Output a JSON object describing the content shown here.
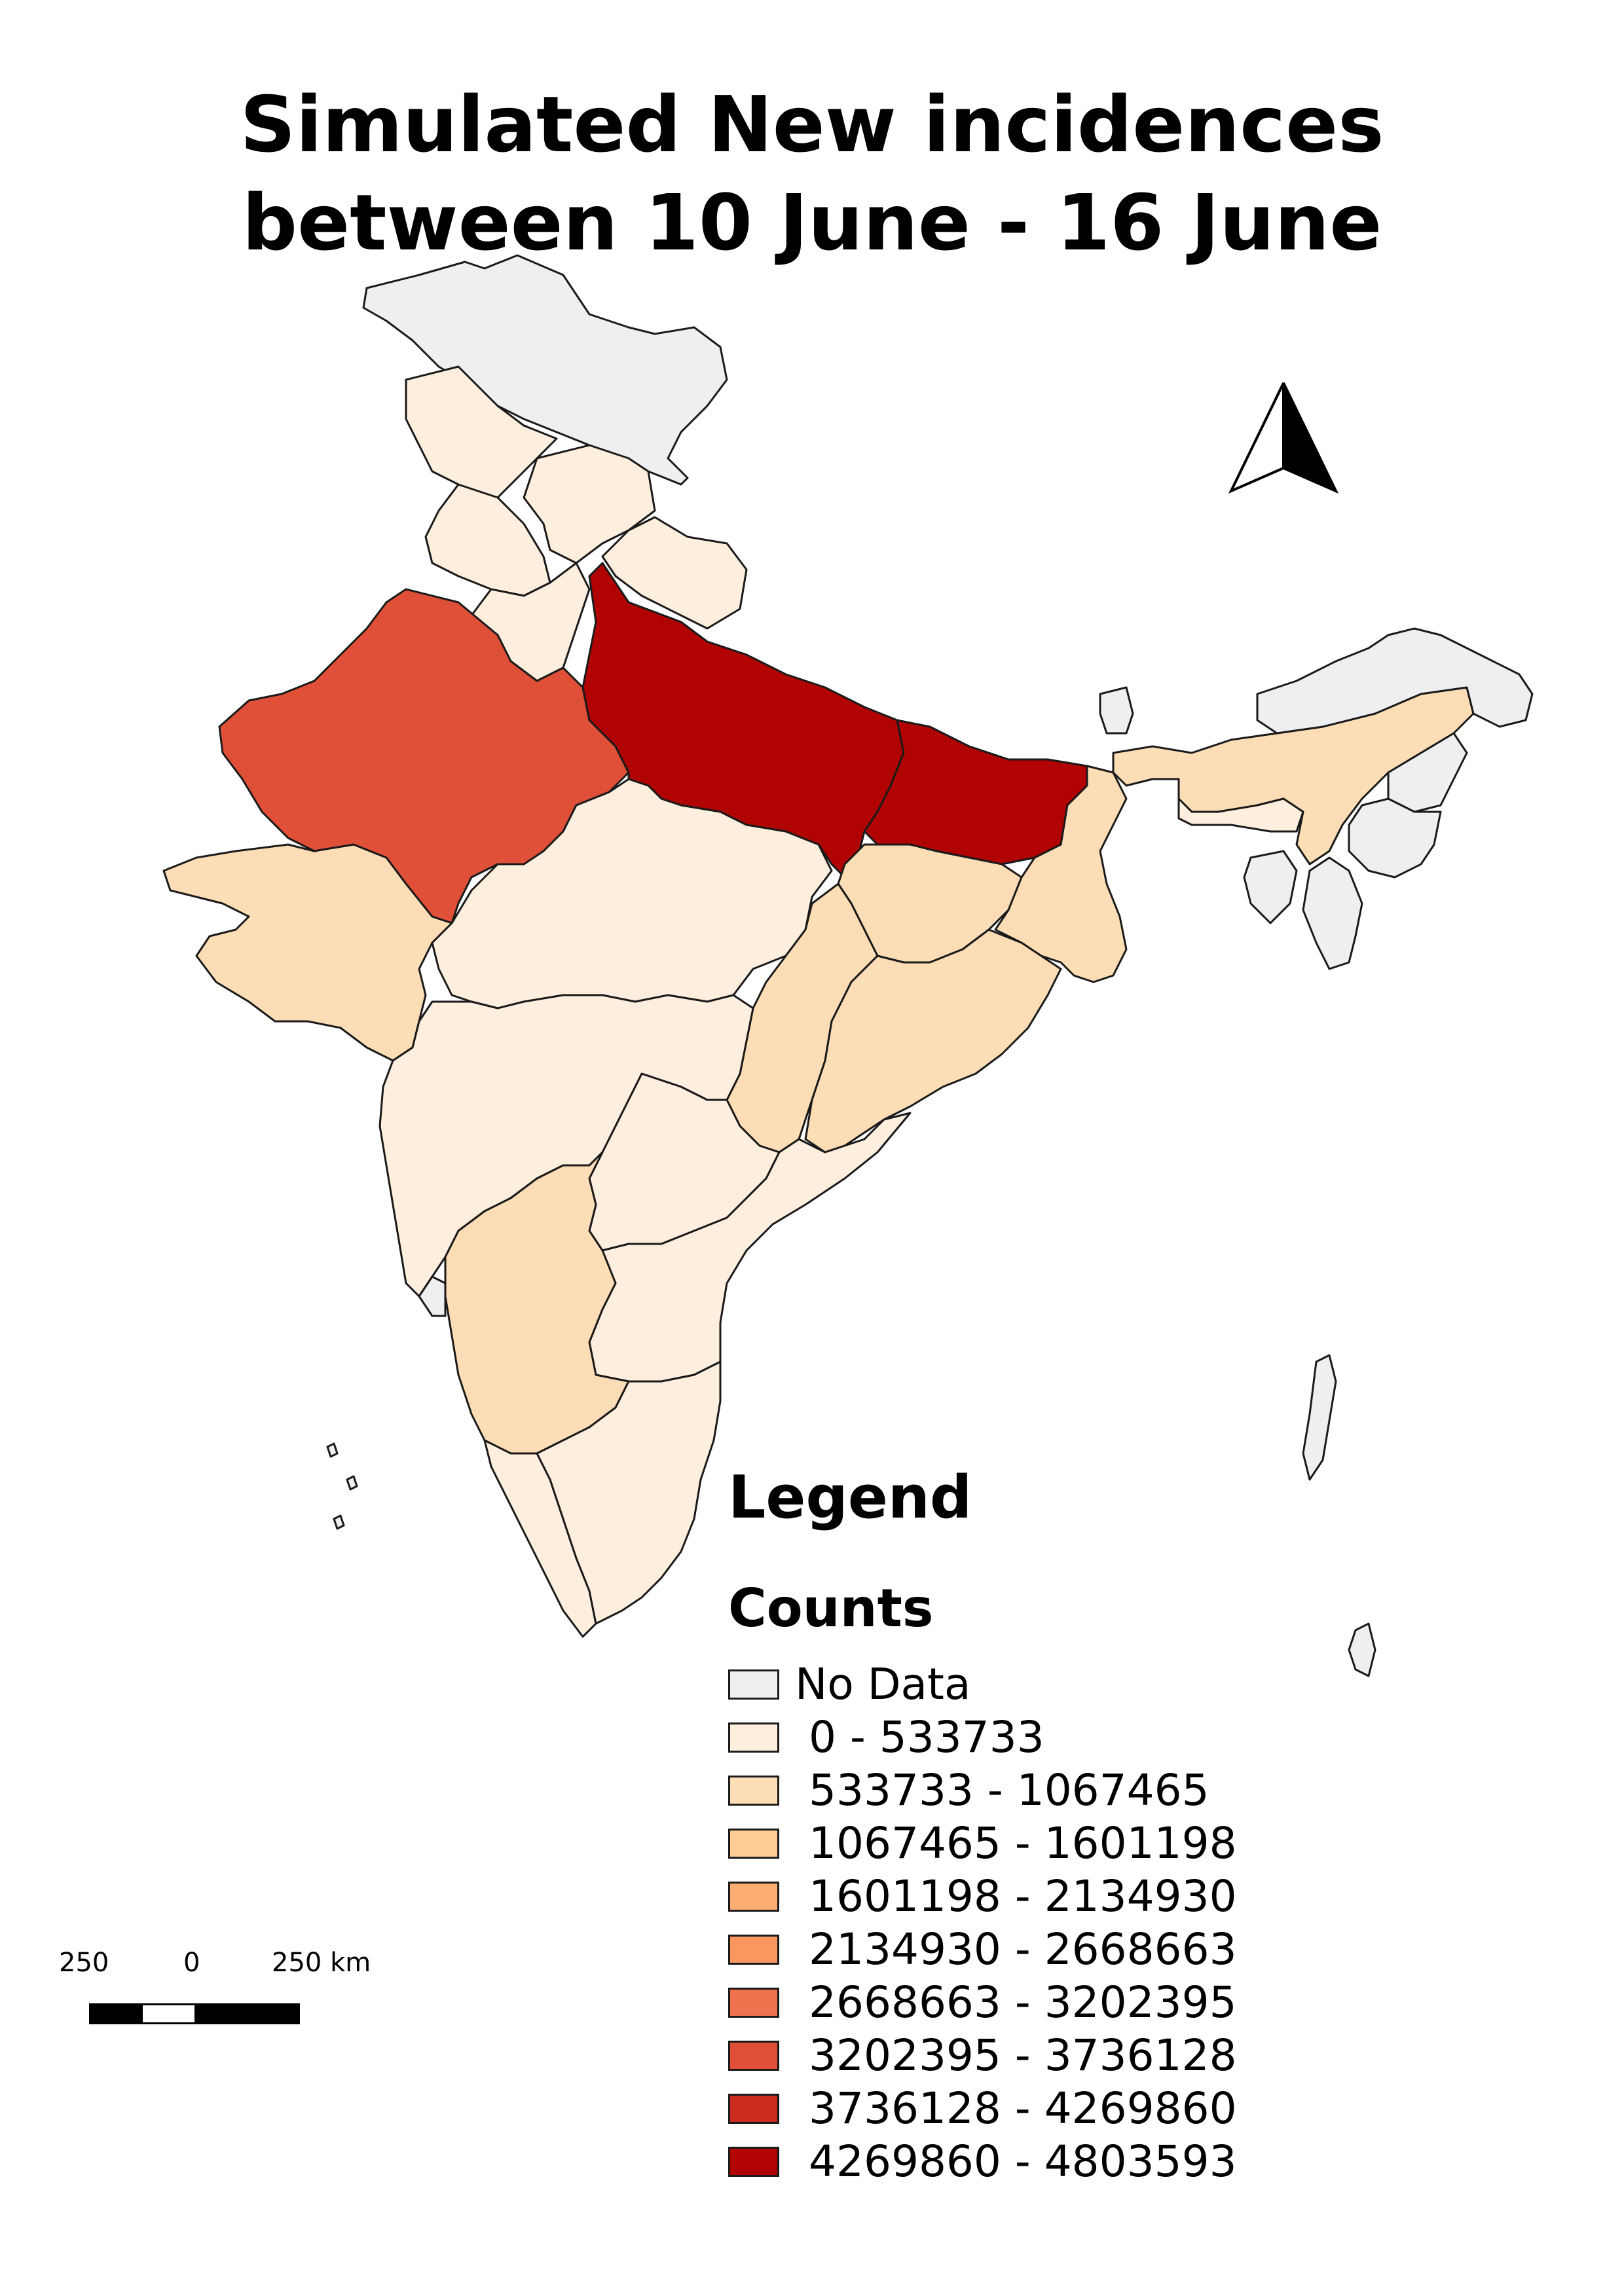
{
  "title": {
    "line1": "Simulated New incidences",
    "line2": "between 10 June - 16 June"
  },
  "legend": {
    "heading": "Legend",
    "subheading": "Counts",
    "classes": [
      {
        "label": "No Data",
        "color": "#edeff0"
      },
      {
        "label": " 0 - 533733",
        "color": "#fdeedd"
      },
      {
        "label": " 533733 - 1067465",
        "color": "#fcddb5"
      },
      {
        "label": " 1067465 - 1601198",
        "color": "#fccc93"
      },
      {
        "label": " 1601198 - 2134930",
        "color": "#fcae72"
      },
      {
        "label": " 2134930 - 2668663",
        "color": "#fa9660"
      },
      {
        "label": " 2668663 - 3202395",
        "color": "#f0724d"
      },
      {
        "label": " 3202395 - 3736128",
        "color": "#e04f38"
      },
      {
        "label": " 3736128 - 4269860",
        "color": "#cb2b1f"
      },
      {
        "label": " 4269860 - 4803593",
        "color": "#b10301"
      }
    ]
  },
  "scale_bar": {
    "labels": [
      "250",
      "0",
      "250 km"
    ]
  },
  "north_arrow": {
    "icon": "north-arrow-icon"
  },
  "regions": [
    {
      "name": "jammu-kashmir",
      "class": 0
    },
    {
      "name": "himachal-pradesh",
      "class": 1
    },
    {
      "name": "punjab",
      "class": 1
    },
    {
      "name": "uttarakhand",
      "class": 1
    },
    {
      "name": "haryana",
      "class": 1
    },
    {
      "name": "delhi",
      "class": 1
    },
    {
      "name": "rajasthan",
      "class": 7
    },
    {
      "name": "uttar-pradesh",
      "class": 9
    },
    {
      "name": "bihar",
      "class": 9
    },
    {
      "name": "gujarat",
      "class": 2
    },
    {
      "name": "madhya-pradesh",
      "class": 1
    },
    {
      "name": "jharkhand",
      "class": 2
    },
    {
      "name": "west-bengal",
      "class": 2
    },
    {
      "name": "chhattisgarh",
      "class": 2
    },
    {
      "name": "odisha",
      "class": 2
    },
    {
      "name": "maharashtra",
      "class": 1
    },
    {
      "name": "telangana",
      "class": 1
    },
    {
      "name": "andhra-pradesh",
      "class": 1
    },
    {
      "name": "karnataka",
      "class": 2
    },
    {
      "name": "goa",
      "class": 0
    },
    {
      "name": "kerala",
      "class": 1
    },
    {
      "name": "tamil-nadu",
      "class": 1
    },
    {
      "name": "sikkim",
      "class": 0
    },
    {
      "name": "assam",
      "class": 2
    },
    {
      "name": "meghalaya",
      "class": 1
    },
    {
      "name": "arunachal-pradesh",
      "class": 0
    },
    {
      "name": "nagaland",
      "class": 0
    },
    {
      "name": "manipur",
      "class": 0
    },
    {
      "name": "mizoram",
      "class": 0
    },
    {
      "name": "tripura",
      "class": 0
    },
    {
      "name": "andaman-nicobar",
      "class": 0
    },
    {
      "name": "lakshadweep",
      "class": 0
    }
  ]
}
